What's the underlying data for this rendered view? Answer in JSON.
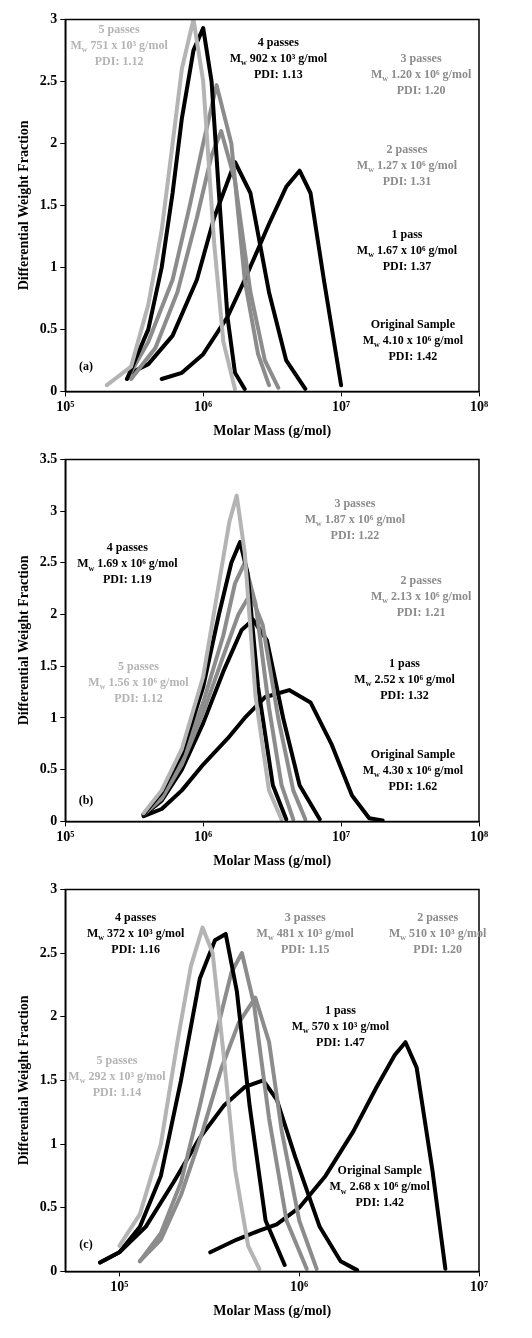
{
  "chart_data": [
    {
      "type": "line",
      "xlabel": "Molar Mass (g/mol)",
      "ylabel": "Differential Weight Fraction",
      "log": "x",
      "xlim": [
        100000,
        100000000
      ],
      "ylim": [
        0,
        3
      ],
      "xticks": [
        {
          "value": 100000,
          "label": "10⁵"
        },
        {
          "value": 1000000,
          "label": "10⁶"
        },
        {
          "value": 10000000,
          "label": "10⁷"
        },
        {
          "value": 100000000,
          "label": "10⁸"
        }
      ],
      "yticks": [
        0,
        0.5,
        1,
        1.5,
        2,
        2.5,
        3
      ],
      "grid": false,
      "legend": false,
      "marker": "none",
      "line_style": "solid",
      "series": [
        {
          "color": "#b4b4b4",
          "x": [
            200000,
            300000,
            400000,
            500000,
            600000,
            700000,
            850000,
            1000000,
            1200000,
            1400000,
            1700000
          ],
          "values": [
            0.05,
            0.2,
            0.7,
            1.3,
            2.0,
            2.6,
            3.0,
            2.5,
            1.2,
            0.4,
            0.02
          ]
        },
        {
          "color": "#000000",
          "x": [
            280000,
            400000,
            500000,
            600000,
            700000,
            850000,
            1000000,
            1150000,
            1300000,
            1500000,
            1700000,
            2000000
          ],
          "values": [
            0.1,
            0.5,
            1.0,
            1.6,
            2.2,
            2.75,
            2.93,
            2.5,
            1.6,
            0.6,
            0.15,
            0.02
          ]
        },
        {
          "color": "#8c8c8c",
          "x": [
            280000,
            400000,
            600000,
            800000,
            1000000,
            1250000,
            1600000,
            2000000,
            2500000,
            3000000
          ],
          "values": [
            0.1,
            0.4,
            0.9,
            1.5,
            2.0,
            2.47,
            2.0,
            0.9,
            0.3,
            0.05
          ]
        },
        {
          "color": "#8c8c8c",
          "x": [
            300000,
            450000,
            650000,
            900000,
            1150000,
            1350000,
            1700000,
            2200000,
            2800000,
            3500000
          ],
          "values": [
            0.1,
            0.35,
            0.8,
            1.4,
            1.9,
            2.1,
            1.7,
            0.8,
            0.25,
            0.03
          ]
        },
        {
          "color": "#000000",
          "x": [
            300000,
            400000,
            600000,
            900000,
            1200000,
            1700000,
            2200000,
            3000000,
            4000000,
            5500000
          ],
          "values": [
            0.15,
            0.22,
            0.45,
            0.9,
            1.4,
            1.85,
            1.6,
            0.8,
            0.25,
            0.02
          ]
        },
        {
          "color": "#000000",
          "x": [
            500000,
            700000,
            1000000,
            1500000,
            2000000,
            3000000,
            4000000,
            5000000,
            6000000,
            7500000,
            10000000
          ],
          "values": [
            0.1,
            0.15,
            0.3,
            0.6,
            0.9,
            1.35,
            1.65,
            1.78,
            1.6,
            0.9,
            0.05
          ]
        }
      ],
      "annotations": [
        "5 passes",
        "M$_{w}$ 751 x 10³ g/mol",
        "PDI: 1.12",
        "4 passes",
        "M$_{w}$ 902 x 10³ g/mol",
        "PDI: 1.13",
        "3 passes",
        "M$_{w}$ 1.20 x 10⁶ g/mol",
        "PDI: 1.20",
        "2 passes",
        "M$_{w}$ 1.27 x 10⁶ g/mol",
        "PDI: 1.31",
        "1 pass",
        "M$_{w}$ 1.67 x 10⁶ g/mol",
        "PDI: 1.37",
        "Original Sample",
        "M$_{w}$ 4.10 x 10⁶ g/mol",
        "PDI: 1.42",
        "(a)"
      ]
    },
    {
      "type": "line",
      "xlabel": "Molar Mass (g/mol)",
      "ylabel": "Differential Weight Fraction",
      "log": "x",
      "xlim": [
        100000,
        100000000
      ],
      "ylim": [
        0,
        3.5
      ],
      "xticks": [
        {
          "value": 100000,
          "label": "10⁵"
        },
        {
          "value": 1000000,
          "label": "10⁶"
        },
        {
          "value": 10000000,
          "label": "10⁷"
        },
        {
          "value": 100000000,
          "label": "10⁸"
        }
      ],
      "yticks": [
        0,
        0.5,
        1,
        1.5,
        2,
        2.5,
        3,
        3.5
      ],
      "grid": false,
      "legend": false,
      "marker": "none",
      "line_style": "solid",
      "series": [
        {
          "color": "#b4b4b4",
          "x": [
            370000,
            500000,
            700000,
            1000000,
            1300000,
            1550000,
            1750000,
            2000000,
            2400000,
            3000000,
            3700000
          ],
          "values": [
            0.08,
            0.3,
            0.7,
            1.4,
            2.3,
            2.9,
            3.15,
            2.6,
            1.2,
            0.3,
            0.02
          ]
        },
        {
          "color": "#000000",
          "x": [
            370000,
            500000,
            700000,
            1000000,
            1300000,
            1600000,
            1850000,
            2100000,
            2500000,
            3200000,
            4000000
          ],
          "values": [
            0.07,
            0.28,
            0.65,
            1.3,
            2.0,
            2.5,
            2.7,
            2.4,
            1.3,
            0.35,
            0.02
          ]
        },
        {
          "color": "#8c8c8c",
          "x": [
            370000,
            500000,
            700000,
            1000000,
            1400000,
            1700000,
            2000000,
            2400000,
            3000000,
            3700000,
            4500000
          ],
          "values": [
            0.07,
            0.25,
            0.6,
            1.15,
            1.8,
            2.3,
            2.5,
            2.1,
            1.1,
            0.35,
            0.02
          ]
        },
        {
          "color": "#8c8c8c",
          "x": [
            370000,
            500000,
            700000,
            1000000,
            1400000,
            1800000,
            2200000,
            2700000,
            3500000,
            4500000,
            5500000
          ],
          "values": [
            0.07,
            0.22,
            0.55,
            1.05,
            1.6,
            2.0,
            2.2,
            1.9,
            1.0,
            0.3,
            0.02
          ]
        },
        {
          "color": "#000000",
          "x": [
            370000,
            500000,
            700000,
            1000000,
            1400000,
            1900000,
            2300000,
            2900000,
            3800000,
            5000000,
            7000000
          ],
          "values": [
            0.06,
            0.2,
            0.5,
            0.95,
            1.45,
            1.85,
            1.95,
            1.75,
            1.0,
            0.35,
            0.02
          ]
        },
        {
          "color": "#000000",
          "x": [
            370000,
            500000,
            700000,
            1000000,
            1500000,
            2000000,
            2800000,
            4200000,
            6000000,
            8500000,
            12000000,
            16000000,
            20000000
          ],
          "values": [
            0.05,
            0.12,
            0.3,
            0.55,
            0.8,
            1.0,
            1.2,
            1.27,
            1.15,
            0.75,
            0.25,
            0.03,
            0.01
          ]
        }
      ],
      "annotations": [
        "5 passes",
        "M$_{w}$ 1.56 x 10⁶ g/mol",
        "PDI: 1.12",
        "4 passes",
        "M$_{w}$ 1.69 x 10⁶ g/mol",
        "PDI: 1.19",
        "3 passes",
        "M$_{w}$ 1.87 x 10⁶ g/mol",
        "PDI: 1.22",
        "2 passes",
        "M$_{w}$ 2.13 x 10⁶ g/mol",
        "PDI: 1.21",
        "1 pass",
        "M$_{w}$ 2.52 x 10⁶ g/mol",
        "PDI: 1.32",
        "Original Sample",
        "M$_{w}$ 4.30 x 10⁶ g/mol",
        "PDI: 1.62",
        "(b)"
      ]
    },
    {
      "type": "line",
      "xlabel": "Molar Mass (g/mol)",
      "ylabel": "Differential Weight Fraction",
      "log": "x",
      "xlim": [
        50000,
        10000000
      ],
      "ylim": [
        0,
        3
      ],
      "xticks": [
        {
          "value": 100000,
          "label": "10⁵"
        },
        {
          "value": 1000000,
          "label": "10⁶"
        },
        {
          "value": 10000000,
          "label": "10⁷"
        }
      ],
      "yticks": [
        0,
        0.5,
        1,
        1.5,
        2,
        2.5,
        3
      ],
      "grid": false,
      "legend": false,
      "marker": "none",
      "line_style": "solid",
      "series": [
        {
          "color": "#b4b4b4",
          "x": [
            100000,
            130000,
            170000,
            210000,
            250000,
            290000,
            330000,
            380000,
            440000,
            520000,
            600000
          ],
          "values": [
            0.2,
            0.45,
            1.0,
            1.8,
            2.4,
            2.7,
            2.5,
            1.7,
            0.8,
            0.2,
            0.02
          ]
        },
        {
          "color": "#000000",
          "x": [
            78000,
            100000,
            130000,
            170000,
            220000,
            280000,
            340000,
            390000,
            450000,
            530000,
            650000,
            830000
          ],
          "values": [
            0.07,
            0.15,
            0.35,
            0.75,
            1.5,
            2.3,
            2.6,
            2.65,
            2.2,
            1.3,
            0.4,
            0.05
          ]
        },
        {
          "color": "#8c8c8c",
          "x": [
            130000,
            170000,
            220000,
            280000,
            350000,
            420000,
            480000,
            560000,
            680000,
            850000,
            1100000
          ],
          "values": [
            0.08,
            0.3,
            0.7,
            1.3,
            1.9,
            2.35,
            2.5,
            2.1,
            1.2,
            0.4,
            0.02
          ]
        },
        {
          "color": "#8c8c8c",
          "x": [
            130000,
            170000,
            220000,
            290000,
            370000,
            460000,
            570000,
            680000,
            800000,
            1000000,
            1250000
          ],
          "values": [
            0.08,
            0.25,
            0.6,
            1.1,
            1.6,
            1.95,
            2.15,
            1.8,
            1.1,
            0.4,
            0.02
          ]
        },
        {
          "color": "#000000",
          "x": [
            78000,
            100000,
            140000,
            200000,
            280000,
            380000,
            500000,
            630000,
            750000,
            950000,
            1300000,
            1700000,
            2100000
          ],
          "values": [
            0.07,
            0.15,
            0.35,
            0.7,
            1.05,
            1.3,
            1.45,
            1.5,
            1.35,
            0.9,
            0.35,
            0.08,
            0.01
          ]
        },
        {
          "color": "#000000",
          "x": [
            320000,
            450000,
            600000,
            750000,
            1000000,
            1400000,
            2000000,
            2700000,
            3400000,
            3900000,
            4500000,
            5500000,
            6500000
          ],
          "values": [
            0.15,
            0.25,
            0.32,
            0.37,
            0.5,
            0.75,
            1.1,
            1.45,
            1.7,
            1.8,
            1.6,
            0.8,
            0.02
          ]
        }
      ],
      "annotations": [
        "5 passes",
        "M$_{w}$ 292 x 10³ g/mol",
        "PDI: 1.14",
        "4 passes",
        "M$_{w}$ 372 x 10³ g/mol",
        "PDI: 1.16",
        "3 passes",
        "M$_{w}$ 481 x 10³ g/mol",
        "PDI: 1.15",
        "2 passes",
        "M$_{w}$ 510 x 10³ g/mol",
        "PDI: 1.20",
        "1 pass",
        "M$_{w}$ 570 x 10³ g/mol",
        "PDI: 1.47",
        "Original Sample",
        "M$_{w}$ 2.68 x 10⁶ g/mol",
        "PDI: 1.42",
        "(c)"
      ]
    }
  ]
}
